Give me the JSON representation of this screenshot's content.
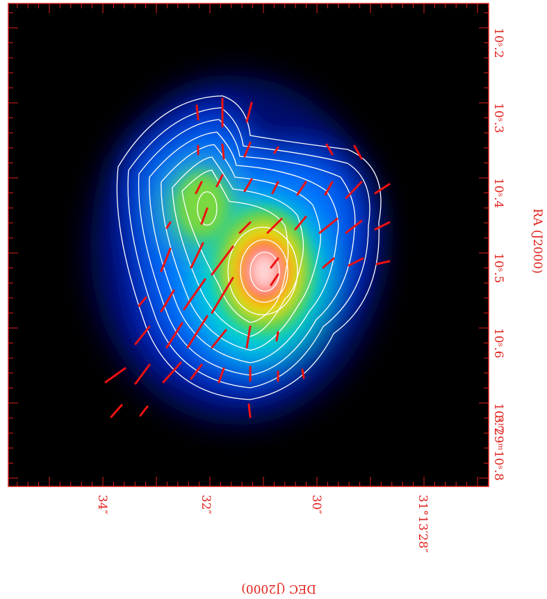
{
  "axes": {
    "ra_label": "RA (J2000)",
    "dec_label": "DEC (J2000)",
    "ra_ticks": [
      "10ˢ.2",
      "10ˢ.3",
      "10ˢ.4",
      "10ˢ.5",
      "10ˢ.6",
      "10ˢ.7",
      "3ʰ29ᵐ10ˢ.8"
    ],
    "dec_ticks": [
      "34″",
      "32″",
      "30″",
      "31°13′28″"
    ]
  }
}
